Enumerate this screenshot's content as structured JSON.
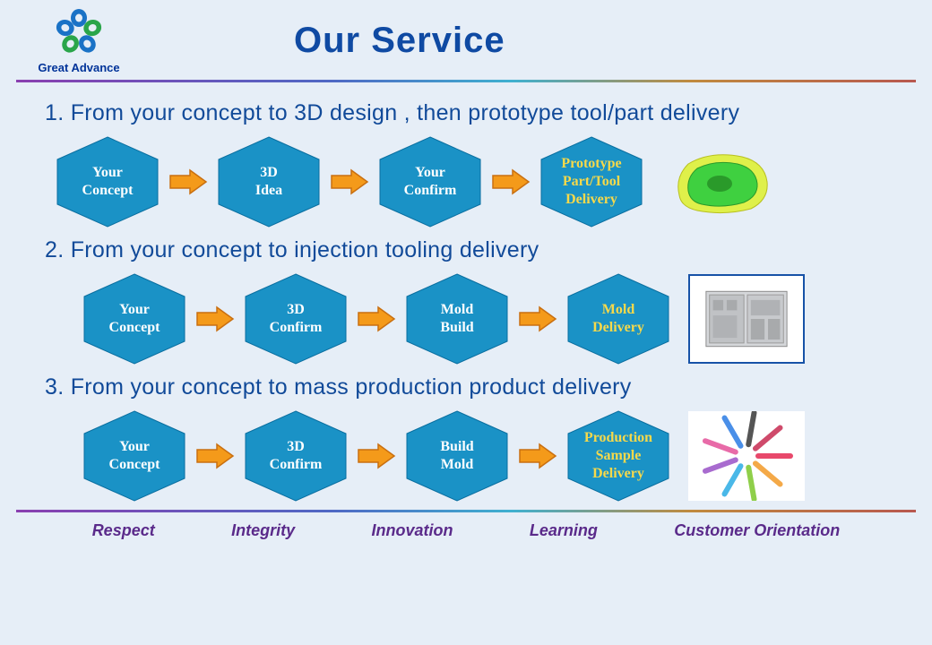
{
  "header": {
    "company_name": "Great Advance",
    "title": "Our Service"
  },
  "colors": {
    "hex_fill": "#1a92c6",
    "hex_stroke": "#0a6fa0",
    "arrow_fill": "#f49a1a",
    "arrow_stroke": "#c96f10",
    "text_white": "#ffffff",
    "text_yellow": "#f7d94a",
    "title_color": "#0f4aa3",
    "subtitle_color": "#114a99",
    "footer_color": "#5a2a8a",
    "bg": "#e6eef7"
  },
  "sections": [
    {
      "title": "1. From your concept to 3D design , then prototype tool/part  delivery",
      "steps": [
        {
          "text": "Your\nConcept",
          "textcolor": "white"
        },
        {
          "text": "3D\nIdea",
          "textcolor": "white"
        },
        {
          "text": "Your\nConfirm",
          "textcolor": "white"
        },
        {
          "text": "Prototype\nPart/Tool\nDelivery",
          "textcolor": "yellow"
        }
      ],
      "image": "3d-part-render"
    },
    {
      "title": "2. From your concept to injection tooling delivery",
      "steps": [
        {
          "text": "Your\nConcept",
          "textcolor": "white"
        },
        {
          "text": "3D\nConfirm",
          "textcolor": "white"
        },
        {
          "text": "Mold\nBuild",
          "textcolor": "white"
        },
        {
          "text": "Mold\nDelivery",
          "textcolor": "yellow"
        }
      ],
      "image": "mold-photo"
    },
    {
      "title": "3. From your concept to mass production product delivery",
      "steps": [
        {
          "text": "Your\nConcept",
          "textcolor": "white"
        },
        {
          "text": "3D\nConfirm",
          "textcolor": "white"
        },
        {
          "text": "Build\nMold",
          "textcolor": "white"
        },
        {
          "text": "Production\nSample\nDelivery",
          "textcolor": "yellow"
        }
      ],
      "image": "product-samples"
    }
  ],
  "footer": [
    "Respect",
    "Integrity",
    "Innovation",
    "Learning",
    "Customer Orientation"
  ]
}
